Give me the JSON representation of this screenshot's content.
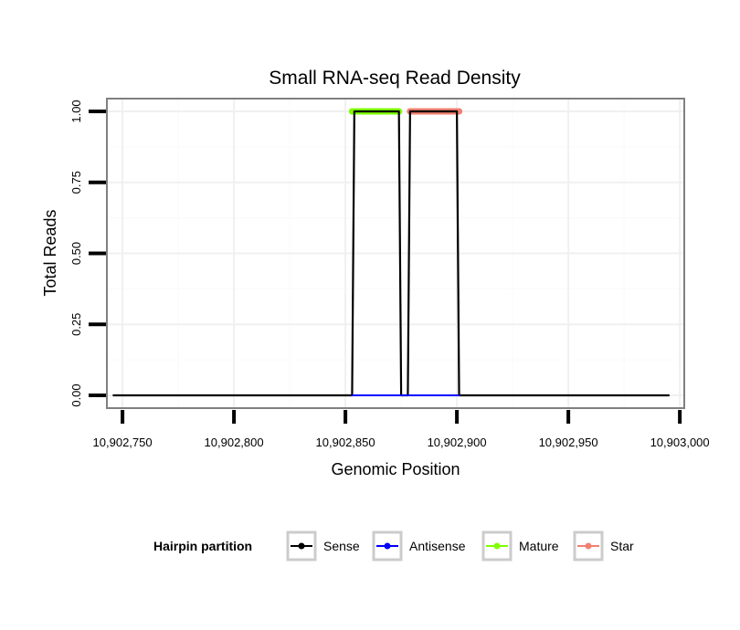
{
  "chart_data": {
    "type": "line",
    "title": "Small RNA-seq Read Density",
    "xlabel": "Genomic Position",
    "ylabel": "Total Reads",
    "xlim": [
      10902743,
      10903002
    ],
    "ylim": [
      -0.045,
      1.045
    ],
    "x_ticks": [
      10902750,
      10902800,
      10902850,
      10902900,
      10902950,
      10903000
    ],
    "x_tick_labels": [
      "10,902,750",
      "10,902,800",
      "10,902,850",
      "10,902,900",
      "10,902,950",
      "10,903,000"
    ],
    "y_ticks": [
      0,
      0.25,
      0.5,
      0.75,
      1.0
    ],
    "y_tick_labels": [
      "0.00",
      "0.25",
      "0.50",
      "0.75",
      "1.00"
    ],
    "grid": true,
    "series": [
      {
        "name": "Sense",
        "color": "#000000",
        "points": [
          [
            10902746,
            0
          ],
          [
            10902853,
            0
          ],
          [
            10902854,
            1
          ],
          [
            10902874,
            1
          ],
          [
            10902875,
            0
          ],
          [
            10902878,
            0
          ],
          [
            10902879,
            1
          ],
          [
            10902900,
            1
          ],
          [
            10902901,
            0
          ],
          [
            10902995,
            0
          ]
        ]
      },
      {
        "name": "Antisense",
        "color": "#0000ff",
        "points": [
          [
            10902853,
            0
          ],
          [
            10902901,
            0
          ]
        ]
      },
      {
        "name": "Mature",
        "color": "#7fff00",
        "points": [
          [
            10902853,
            1
          ],
          [
            10902874,
            1
          ]
        ]
      },
      {
        "name": "Star",
        "color": "#f08070",
        "points": [
          [
            10902879,
            1
          ],
          [
            10902901,
            1
          ]
        ]
      }
    ],
    "legend": {
      "title": "Hairpin partition",
      "position": "bottom",
      "entries": [
        "Sense",
        "Antisense",
        "Mature",
        "Star"
      ]
    }
  }
}
